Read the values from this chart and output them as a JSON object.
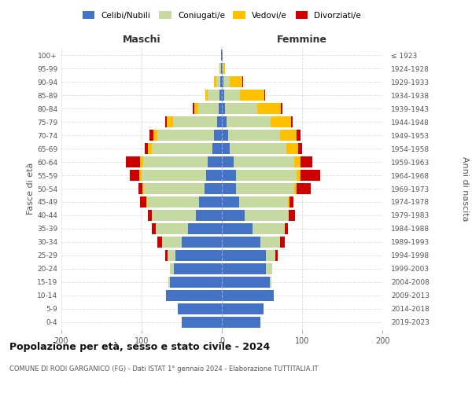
{
  "age_groups": [
    "0-4",
    "5-9",
    "10-14",
    "15-19",
    "20-24",
    "25-29",
    "30-34",
    "35-39",
    "40-44",
    "45-49",
    "50-54",
    "55-59",
    "60-64",
    "65-69",
    "70-74",
    "75-79",
    "80-84",
    "85-89",
    "90-94",
    "95-99",
    "100+"
  ],
  "birth_years": [
    "2019-2023",
    "2014-2018",
    "2009-2013",
    "2004-2008",
    "1999-2003",
    "1994-1998",
    "1989-1993",
    "1984-1988",
    "1979-1983",
    "1974-1978",
    "1969-1973",
    "1964-1968",
    "1959-1963",
    "1954-1958",
    "1949-1953",
    "1944-1948",
    "1939-1943",
    "1934-1938",
    "1929-1933",
    "1924-1928",
    "≤ 1923"
  ],
  "male": {
    "celibi": [
      50,
      55,
      70,
      65,
      60,
      58,
      50,
      42,
      32,
      28,
      22,
      20,
      18,
      12,
      10,
      6,
      4,
      3,
      2,
      1,
      1
    ],
    "coniugati": [
      0,
      0,
      0,
      2,
      5,
      10,
      25,
      40,
      55,
      65,
      75,
      80,
      80,
      75,
      70,
      55,
      25,
      15,
      5,
      1,
      0
    ],
    "vedovi": [
      0,
      0,
      0,
      0,
      0,
      0,
      0,
      0,
      0,
      1,
      2,
      3,
      4,
      5,
      5,
      8,
      5,
      3,
      3,
      1,
      0
    ],
    "divorziati": [
      0,
      0,
      0,
      0,
      0,
      3,
      5,
      5,
      5,
      8,
      5,
      12,
      18,
      4,
      5,
      2,
      2,
      0,
      0,
      0,
      0
    ]
  },
  "female": {
    "nubili": [
      48,
      52,
      65,
      60,
      55,
      55,
      48,
      38,
      28,
      22,
      18,
      18,
      15,
      10,
      8,
      6,
      4,
      3,
      2,
      1,
      1
    ],
    "coniugate": [
      0,
      0,
      0,
      2,
      8,
      12,
      25,
      40,
      55,
      60,
      72,
      75,
      75,
      70,
      65,
      55,
      40,
      20,
      8,
      1,
      0
    ],
    "vedove": [
      0,
      0,
      0,
      0,
      0,
      0,
      0,
      0,
      0,
      2,
      3,
      5,
      8,
      15,
      20,
      25,
      30,
      30,
      15,
      2,
      0
    ],
    "divorziate": [
      0,
      0,
      0,
      0,
      0,
      3,
      5,
      4,
      8,
      5,
      18,
      25,
      15,
      5,
      5,
      2,
      1,
      1,
      1,
      0,
      0
    ]
  },
  "color_celibi": "#4472c4",
  "color_coniugati": "#c5d9a0",
  "color_vedovi": "#ffc000",
  "color_divorziati": "#cc0000",
  "title": "Popolazione per età, sesso e stato civile - 2024",
  "subtitle": "COMUNE DI RODI GARGANICO (FG) - Dati ISTAT 1° gennaio 2024 - Elaborazione TUTTITALIA.IT",
  "xlabel_left": "Maschi",
  "xlabel_right": "Femmine",
  "ylabel_left": "Fasce di età",
  "ylabel_right": "Anni di nascita",
  "xlim": 200,
  "bg_color": "#ffffff",
  "grid_color": "#cccccc"
}
